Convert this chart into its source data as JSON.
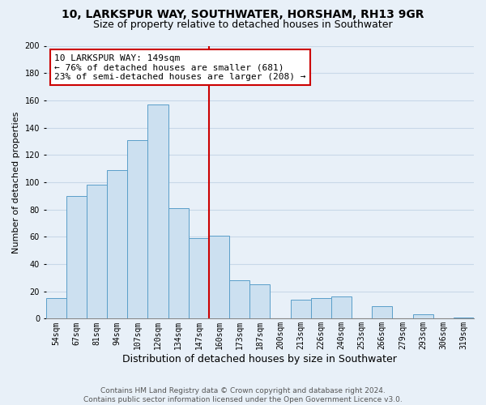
{
  "title": "10, LARKSPUR WAY, SOUTHWATER, HORSHAM, RH13 9GR",
  "subtitle": "Size of property relative to detached houses in Southwater",
  "xlabel": "Distribution of detached houses by size in Southwater",
  "ylabel": "Number of detached properties",
  "bar_labels": [
    "54sqm",
    "67sqm",
    "81sqm",
    "94sqm",
    "107sqm",
    "120sqm",
    "134sqm",
    "147sqm",
    "160sqm",
    "173sqm",
    "187sqm",
    "200sqm",
    "213sqm",
    "226sqm",
    "240sqm",
    "253sqm",
    "266sqm",
    "279sqm",
    "293sqm",
    "306sqm",
    "319sqm"
  ],
  "bar_heights": [
    15,
    90,
    98,
    109,
    131,
    157,
    81,
    59,
    61,
    28,
    25,
    0,
    14,
    15,
    16,
    0,
    9,
    0,
    3,
    0,
    1
  ],
  "bar_color": "#cce0f0",
  "bar_edge_color": "#5a9ec9",
  "vline_x_index": 7,
  "vline_color": "#cc0000",
  "annotation_line1": "10 LARKSPUR WAY: 149sqm",
  "annotation_line2": "← 76% of detached houses are smaller (681)",
  "annotation_line3": "23% of semi-detached houses are larger (208) →",
  "annotation_box_edge_color": "#cc0000",
  "annotation_box_face_color": "#ffffff",
  "ylim": [
    0,
    200
  ],
  "yticks": [
    0,
    20,
    40,
    60,
    80,
    100,
    120,
    140,
    160,
    180,
    200
  ],
  "footer_line1": "Contains HM Land Registry data © Crown copyright and database right 2024.",
  "footer_line2": "Contains public sector information licensed under the Open Government Licence v3.0.",
  "background_color": "#e8f0f8",
  "grid_color": "#c8d8e8",
  "plot_bg_color": "#e8f0f8",
  "title_fontsize": 10,
  "subtitle_fontsize": 9,
  "xlabel_fontsize": 9,
  "ylabel_fontsize": 8,
  "tick_fontsize": 7,
  "annotation_fontsize": 8,
  "footer_fontsize": 6.5
}
